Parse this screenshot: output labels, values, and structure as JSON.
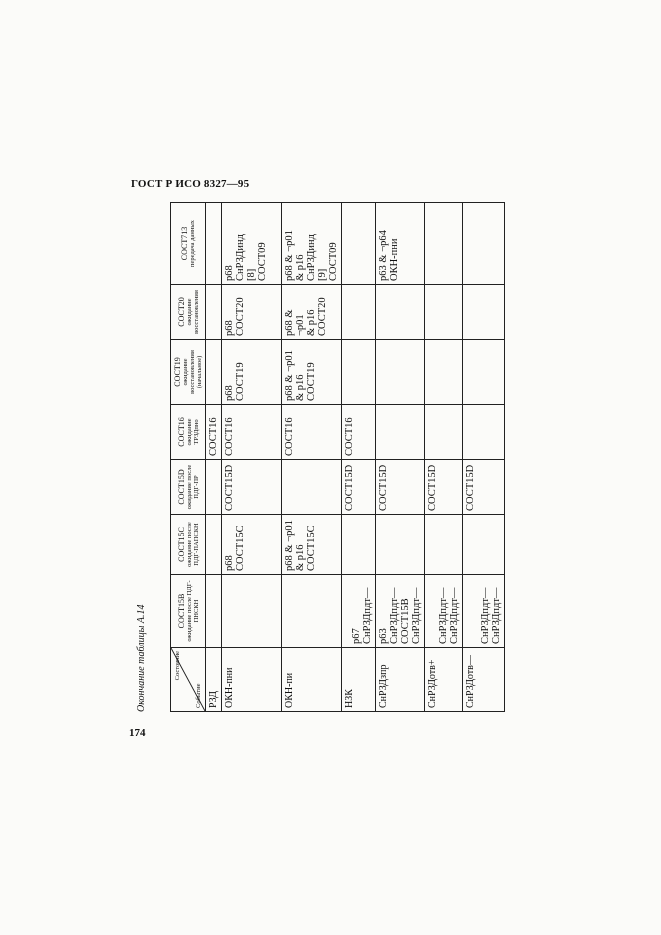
{
  "header": {
    "standard": "ГОСТ Р ИСО 8327—95"
  },
  "caption": "Окончание таблицы А.14",
  "page_number": "174",
  "table": {
    "corner": {
      "state_label": "Состояние",
      "event_label": "Событие"
    },
    "columns": [
      {
        "code": "СОСТ15В",
        "desc": "ожидание после ПДГ-ПНСКН"
      },
      {
        "code": "СОСТ15С",
        "desc": "ожидание после ПДГ-ПАПСКН"
      },
      {
        "code": "СОСТ15D",
        "desc": "ожидание после ПДГ-ПР"
      },
      {
        "code": "СОСТ16",
        "desc": "ожидание ТРЗДпно"
      },
      {
        "code": "СОСТ19",
        "desc": "ожидание восстановления (начальное)"
      },
      {
        "code": "СОСТ20",
        "desc": "ожидание восстановления"
      },
      {
        "code": "СОСТ713",
        "desc": "передача данных"
      }
    ],
    "rows": [
      {
        "event": "РЗД",
        "cells": [
          "",
          "",
          "",
          "СОСТ16",
          "",
          "",
          ""
        ]
      },
      {
        "event": "ОКН-пни",
        "cells": [
          "",
          "p68\nСОСТ15С",
          "СОСТ15D",
          "СОСТ16",
          "p68\nСОСТ19",
          "p68\nСОСТ20",
          "p68\nСнРЗДинд\n[8]\nСОСТ09"
        ]
      },
      {
        "event": "ОКН-пи",
        "cells": [
          "",
          "p68 & ¬p01\n& p16\nСОСТ15С",
          "",
          "СОСТ16",
          "p68 & ¬p01\n& p16\nСОСТ19",
          "p68 & ¬p01\n& p16\nСОСТ20",
          "p68 & ¬p01\n& p16\nСнРЗДинд\n[9]\nСОСТ09"
        ]
      },
      {
        "event": "НЗК",
        "cells": [
          "p67\nСнРЗДпдт—",
          "",
          "СОСТ15D",
          "СОСТ16",
          "",
          "",
          ""
        ]
      },
      {
        "event": "СнРЗДзпр",
        "cells": [
          "p63\nСнРЗДпдт—\nСОСТ15В\nСнРЗДпдт—",
          "",
          "СОСТ15D",
          "",
          "",
          "",
          "p63 & ¬p64\nОКН-пни"
        ]
      },
      {
        "event": "СнРЗДотв+",
        "cells": [
          "СнРЗДпдт—\nСнРЗДпдт—",
          "",
          "СОСТ15D",
          "",
          "",
          "",
          ""
        ]
      },
      {
        "event": "СнРЗДотв—",
        "cells": [
          "СнРЗДпдт—\nСнРЗДпдт—",
          "",
          "СОСТ15D",
          "",
          "",
          "",
          ""
        ]
      }
    ]
  }
}
